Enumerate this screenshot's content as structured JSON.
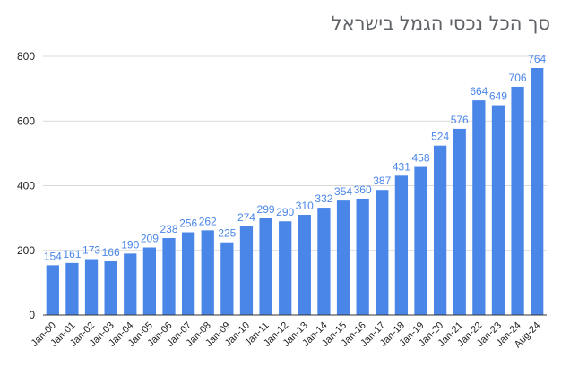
{
  "chart_data": {
    "type": "bar",
    "title": "סך הכל נכסי הגמל בישראל",
    "categories": [
      "Jan-00",
      "Jan-01",
      "Jan-02",
      "Jan-03",
      "Jan-04",
      "Jan-05",
      "Jan-06",
      "Jan-07",
      "Jan-08",
      "Jan-09",
      "Jan-10",
      "Jan-11",
      "Jan-12",
      "Jan-13",
      "Jan-14",
      "Jan-15",
      "Jan-16",
      "Jan-17",
      "Jan-18",
      "Jan-19",
      "Jan-20",
      "Jan-21",
      "Jan-22",
      "Jan-23",
      "Jan-24",
      "Aug-24"
    ],
    "values": [
      154,
      161,
      173,
      166,
      190,
      209,
      238,
      256,
      262,
      225,
      274,
      299,
      290,
      310,
      332,
      354,
      360,
      387,
      431,
      458,
      524,
      576,
      664,
      649,
      706,
      764
    ],
    "ylim": [
      0,
      800
    ],
    "yticks": [
      0,
      200,
      400,
      600,
      800
    ],
    "grid": true,
    "legend": "none",
    "colors": {
      "bar": "#4a86e8",
      "label": "#4a86e8"
    }
  }
}
